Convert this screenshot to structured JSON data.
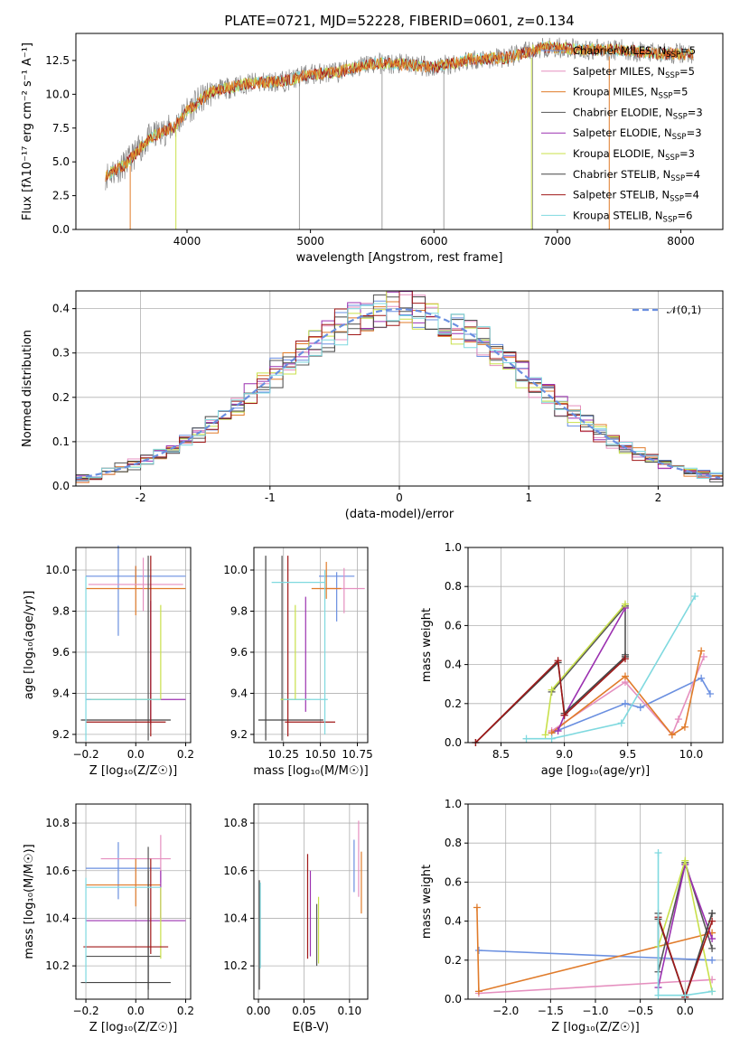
{
  "colors": {
    "chabrier_miles": "#6a8fe0",
    "salpeter_miles": "#e58fbf",
    "kroupa_miles": "#e07b2a",
    "chabrier_elodie": "#555555",
    "salpeter_elodie": "#9b30b0",
    "kroupa_elodie": "#c8e04a",
    "chabrier_stelib": "#444444",
    "salpeter_stelib": "#a01818",
    "kroupa_stelib": "#7fd9df"
  },
  "series_labels": [
    "Chabrier MILES, N_SSP=5",
    "Salpeter MILES, N_SSP=5",
    "Kroupa MILES, N_SSP=5",
    "Chabrier ELODIE, N_SSP=3",
    "Salpeter ELODIE, N_SSP=3",
    "Kroupa ELODIE, N_SSP=3",
    "Chabrier STELIB, N_SSP=4",
    "Salpeter STELIB, N_SSP=4",
    "Kroupa STELIB, N_SSP=6"
  ],
  "chart_data": [
    {
      "id": "spectrum",
      "type": "line",
      "title": "PLATE=0721, MJD=52228, FIBERID=0601, z=0.134",
      "xlabel": "wavelength [Angstrom, rest frame]",
      "ylabel": "Flux [fλ10⁻¹⁷ erg cm⁻² s⁻¹ A⁻¹]",
      "xlim": [
        3100,
        8340
      ],
      "ylim": [
        0,
        14.5
      ],
      "xticks": [
        4000,
        5000,
        6000,
        7000,
        8000
      ],
      "yticks": [
        0,
        2.5,
        5,
        7.5,
        10,
        12.5
      ],
      "ytick_labels": [
        "0.0",
        "2.5",
        "5.0",
        "7.5",
        "10.0",
        "12.5"
      ],
      "legend": "upper-right",
      "continuum": {
        "x": [
          3340,
          3500,
          3700,
          3900,
          4000,
          4200,
          4500,
          4800,
          5000,
          5200,
          5500,
          5800,
          6000,
          6300,
          6600,
          6900,
          7200,
          7500,
          7800,
          8100
        ],
        "y": [
          4.0,
          4.8,
          6.8,
          7.6,
          8.8,
          10.2,
          10.8,
          11.0,
          11.5,
          11.6,
          12.3,
          12.2,
          12.0,
          12.6,
          12.7,
          13.5,
          13.3,
          13.3,
          13.0,
          13.0
        ]
      }
    },
    {
      "id": "residuals",
      "type": "histogram",
      "xlabel": "(data-model)/error",
      "ylabel": "Normed distribution",
      "xlim": [
        -2.5,
        2.5
      ],
      "ylim": [
        0,
        0.44
      ],
      "xticks": [
        -2,
        -1,
        0,
        1,
        2
      ],
      "yticks": [
        0,
        0.1,
        0.2,
        0.3,
        0.4
      ],
      "ytick_labels": [
        "0.0",
        "0.1",
        "0.2",
        "0.3",
        "0.4"
      ],
      "legend_label": "𝒩(0,1)",
      "legend": "upper-right",
      "bin_width": 0.1
    },
    {
      "id": "age_vs_Z",
      "type": "errorbar",
      "xlabel": "Z [log₁₀(Z/Z☉)]",
      "ylabel": "age  [log₁₀(age/yr)]",
      "xlim": [
        -0.24,
        0.22
      ],
      "ylim": [
        9.16,
        10.11
      ],
      "xticks": [
        -0.2,
        0.0,
        0.2
      ],
      "xtick_labels": [
        "−0.2",
        "0.0",
        "0.2"
      ],
      "yticks": [
        9.2,
        9.4,
        9.6,
        9.8,
        10.0
      ],
      "ytick_labels": [
        "9.2",
        "9.4",
        "9.6",
        "9.8",
        "10.0"
      ],
      "points": [
        {
          "s": "chabrier_miles",
          "x": 0.0,
          "xerr": 0.2,
          "y": 9.97,
          "yerr": 0.05
        },
        {
          "s": "chabrier_miles",
          "x": -0.07,
          "xerr": 0.0,
          "y": 9.9,
          "yerr": 0.22
        },
        {
          "s": "kroupa_miles",
          "x": 0.0,
          "xerr": 0.2,
          "y": 9.91,
          "yerr": 0.0
        },
        {
          "s": "kroupa_miles",
          "x": 0.0,
          "xerr": 0.0,
          "y": 9.9,
          "yerr": 0.12
        },
        {
          "s": "salpeter_miles",
          "x": 0.03,
          "xerr": 0.0,
          "y": 9.93,
          "yerr": 0.13
        },
        {
          "s": "salpeter_miles",
          "x": 0.0,
          "xerr": 0.19,
          "y": 9.93,
          "yerr": 0.0
        },
        {
          "s": "chabrier_elodie",
          "x": 0.05,
          "xerr": 0.0,
          "y": 9.62,
          "yerr": 0.45
        },
        {
          "s": "salpeter_elodie",
          "x": 0.0,
          "xerr": 0.2,
          "y": 9.37,
          "yerr": 0.0
        },
        {
          "s": "salpeter_elodie",
          "x": 0.06,
          "xerr": 0.0,
          "y": 9.55,
          "yerr": 0.3
        },
        {
          "s": "kroupa_elodie",
          "x": 0.1,
          "xerr": 0.0,
          "y": 9.6,
          "yerr": 0.23
        },
        {
          "s": "kroupa_elodie",
          "x": -0.04,
          "xerr": 0.14,
          "y": 9.37,
          "yerr": 0.0
        },
        {
          "s": "chabrier_stelib",
          "x": -0.04,
          "xerr": 0.18,
          "y": 9.27,
          "yerr": 0.0
        },
        {
          "s": "salpeter_stelib",
          "x": -0.04,
          "xerr": 0.16,
          "y": 9.26,
          "yerr": 0.0
        },
        {
          "s": "salpeter_stelib",
          "x": 0.06,
          "xerr": 0.0,
          "y": 9.63,
          "yerr": 0.44
        },
        {
          "s": "kroupa_stelib",
          "x": -0.2,
          "xerr": 0.0,
          "y": 9.57,
          "yerr": 0.4
        },
        {
          "s": "kroupa_stelib",
          "x": -0.05,
          "xerr": 0.15,
          "y": 9.37,
          "yerr": 0.0
        }
      ]
    },
    {
      "id": "age_vs_mass",
      "type": "errorbar",
      "xlabel": "mass [log₁₀(M/M☉)]",
      "xlim": [
        10.05,
        10.82
      ],
      "ylim": [
        9.16,
        10.11
      ],
      "xticks": [
        10.25,
        10.5,
        10.75
      ],
      "xtick_labels": [
        "10.25",
        "10.50",
        "10.75"
      ],
      "yticks": [
        9.2,
        9.4,
        9.6,
        9.8,
        10.0
      ],
      "ytick_labels": [
        "9.2",
        "9.4",
        "9.6",
        "9.8",
        "10.0"
      ],
      "points": [
        {
          "s": "chabrier_miles",
          "x": 10.61,
          "xerr": 0.12,
          "y": 9.97,
          "yerr": 0.0
        },
        {
          "s": "chabrier_miles",
          "x": 10.61,
          "xerr": 0.0,
          "y": 9.87,
          "yerr": 0.12
        },
        {
          "s": "salpeter_miles",
          "x": 10.65,
          "xerr": 0.15,
          "y": 9.91,
          "yerr": 0.0
        },
        {
          "s": "salpeter_miles",
          "x": 10.66,
          "xerr": 0.0,
          "y": 9.9,
          "yerr": 0.11
        },
        {
          "s": "kroupa_miles",
          "x": 10.54,
          "xerr": 0.1,
          "y": 9.91,
          "yerr": 0.0
        },
        {
          "s": "kroupa_miles",
          "x": 10.54,
          "xerr": 0.0,
          "y": 9.95,
          "yerr": 0.09
        },
        {
          "s": "chabrier_elodie",
          "x": 10.24,
          "xerr": 0.0,
          "y": 9.62,
          "yerr": 0.45
        },
        {
          "s": "salpeter_elodie",
          "x": 10.4,
          "xerr": 0.0,
          "y": 9.59,
          "yerr": 0.28
        },
        {
          "s": "kroupa_elodie",
          "x": 10.33,
          "xerr": 0.0,
          "y": 9.6,
          "yerr": 0.23
        },
        {
          "s": "kroupa_elodie",
          "x": 10.33,
          "xerr": 0.1,
          "y": 9.37,
          "yerr": 0.0
        },
        {
          "s": "chabrier_stelib",
          "x": 10.13,
          "xerr": 0.0,
          "y": 9.62,
          "yerr": 0.45
        },
        {
          "s": "chabrier_stelib",
          "x": 10.3,
          "xerr": 0.22,
          "y": 9.27,
          "yerr": 0.0
        },
        {
          "s": "salpeter_stelib",
          "x": 10.28,
          "xerr": 0.0,
          "y": 9.63,
          "yerr": 0.44
        },
        {
          "s": "salpeter_stelib",
          "x": 10.43,
          "xerr": 0.17,
          "y": 9.26,
          "yerr": 0.0
        },
        {
          "s": "kroupa_stelib",
          "x": 10.53,
          "xerr": 0.0,
          "y": 9.6,
          "yerr": 0.4
        },
        {
          "s": "kroupa_stelib",
          "x": 10.35,
          "xerr": 0.18,
          "y": 9.94,
          "yerr": 0.0
        },
        {
          "s": "kroupa_stelib",
          "x": 10.4,
          "xerr": 0.15,
          "y": 9.37,
          "yerr": 0.0
        }
      ]
    },
    {
      "id": "weight_vs_age",
      "type": "line",
      "xlabel": "age  [log₁₀(age/yr)]",
      "ylabel": "mass weight",
      "xlim": [
        8.24,
        10.25
      ],
      "ylim": [
        0,
        1.0
      ],
      "xticks": [
        8.5,
        9.0,
        9.5,
        10.0
      ],
      "xtick_labels": [
        "8.5",
        "9.0",
        "9.5",
        "10.0"
      ],
      "yticks": [
        0,
        0.2,
        0.4,
        0.6,
        0.8,
        1.0
      ],
      "ytick_labels": [
        "0.0",
        "0.2",
        "0.4",
        "0.6",
        "0.8",
        "1.0"
      ],
      "series": [
        {
          "s": "chabrier_miles",
          "x": [
            8.9,
            9.48,
            9.6,
            10.08,
            10.15
          ],
          "y": [
            0.05,
            0.2,
            0.18,
            0.33,
            0.25
          ]
        },
        {
          "s": "salpeter_miles",
          "x": [
            8.9,
            9.48,
            9.85,
            9.9,
            10.1
          ],
          "y": [
            0.06,
            0.31,
            0.04,
            0.12,
            0.44
          ]
        },
        {
          "s": "kroupa_miles",
          "x": [
            8.9,
            9.48,
            9.85,
            9.95,
            10.08
          ],
          "y": [
            0.05,
            0.34,
            0.04,
            0.08,
            0.47
          ]
        },
        {
          "s": "chabrier_elodie",
          "x": [
            8.9,
            9.48,
            9.48
          ],
          "y": [
            0.26,
            0.7,
            0.45
          ]
        },
        {
          "s": "salpeter_elodie",
          "x": [
            8.95,
            9.0,
            9.48
          ],
          "y": [
            0.06,
            0.14,
            0.69
          ]
        },
        {
          "s": "kroupa_elodie",
          "x": [
            8.85,
            8.9,
            9.48
          ],
          "y": [
            0.04,
            0.27,
            0.71
          ]
        },
        {
          "s": "chabrier_stelib",
          "x": [
            8.3,
            8.95,
            9.0,
            9.48
          ],
          "y": [
            0.0,
            0.41,
            0.15,
            0.44
          ]
        },
        {
          "s": "salpeter_stelib",
          "x": [
            8.3,
            8.95,
            9.0,
            9.48
          ],
          "y": [
            0.0,
            0.42,
            0.14,
            0.43
          ]
        },
        {
          "s": "kroupa_stelib",
          "x": [
            8.7,
            8.9,
            9.45,
            10.03
          ],
          "y": [
            0.02,
            0.02,
            0.1,
            0.75
          ]
        }
      ]
    },
    {
      "id": "mass_vs_Z",
      "type": "errorbar",
      "xlabel": "Z [log₁₀(Z/Z☉)]",
      "ylabel": "mass [log₁₀(M/M☉)]",
      "xlim": [
        -0.24,
        0.22
      ],
      "ylim": [
        10.06,
        10.88
      ],
      "xticks": [
        -0.2,
        0.0,
        0.2
      ],
      "xtick_labels": [
        "−0.2",
        "0.0",
        "0.2"
      ],
      "yticks": [
        10.2,
        10.4,
        10.6,
        10.8
      ],
      "ytick_labels": [
        "10.2",
        "10.4",
        "10.6",
        "10.8"
      ],
      "points": [
        {
          "s": "chabrier_miles",
          "x": -0.05,
          "xerr": 0.15,
          "y": 10.61,
          "yerr": 0.0
        },
        {
          "s": "chabrier_miles",
          "x": -0.07,
          "xerr": 0.0,
          "y": 10.6,
          "yerr": 0.12
        },
        {
          "s": "salpeter_miles",
          "x": 0.0,
          "xerr": 0.14,
          "y": 10.65,
          "yerr": 0.0
        },
        {
          "s": "salpeter_miles",
          "x": 0.1,
          "xerr": 0.0,
          "y": 10.65,
          "yerr": 0.1
        },
        {
          "s": "kroupa_miles",
          "x": -0.05,
          "xerr": 0.15,
          "y": 10.54,
          "yerr": 0.0
        },
        {
          "s": "kroupa_miles",
          "x": 0.0,
          "xerr": 0.0,
          "y": 10.55,
          "yerr": 0.1
        },
        {
          "s": "chabrier_elodie",
          "x": 0.05,
          "xerr": 0.0,
          "y": 10.38,
          "yerr": 0.32
        },
        {
          "s": "chabrier_elodie",
          "x": -0.05,
          "xerr": 0.15,
          "y": 10.24,
          "yerr": 0.0
        },
        {
          "s": "salpeter_elodie",
          "x": 0.0,
          "xerr": 0.2,
          "y": 10.39,
          "yerr": 0.0
        },
        {
          "s": "salpeter_elodie",
          "x": 0.1,
          "xerr": 0.0,
          "y": 10.5,
          "yerr": 0.1
        },
        {
          "s": "kroupa_elodie",
          "x": 0.1,
          "xerr": 0.0,
          "y": 10.38,
          "yerr": 0.15
        },
        {
          "s": "chabrier_stelib",
          "x": -0.04,
          "xerr": 0.18,
          "y": 10.13,
          "yerr": 0.0
        },
        {
          "s": "chabrier_stelib",
          "x": 0.05,
          "xerr": 0.0,
          "y": 10.35,
          "yerr": 0.25
        },
        {
          "s": "salpeter_stelib",
          "x": -0.04,
          "xerr": 0.17,
          "y": 10.28,
          "yerr": 0.0
        },
        {
          "s": "salpeter_stelib",
          "x": 0.06,
          "xerr": 0.0,
          "y": 10.45,
          "yerr": 0.2
        },
        {
          "s": "kroupa_stelib",
          "x": -0.2,
          "xerr": 0.0,
          "y": 10.35,
          "yerr": 0.22
        },
        {
          "s": "kroupa_stelib",
          "x": -0.05,
          "xerr": 0.15,
          "y": 10.53,
          "yerr": 0.0
        }
      ]
    },
    {
      "id": "mass_vs_ebv",
      "type": "errorbar",
      "xlabel": "E(B-V)",
      "xlim": [
        -0.005,
        0.12
      ],
      "ylim": [
        10.06,
        10.88
      ],
      "xticks": [
        0.0,
        0.05,
        0.1
      ],
      "xtick_labels": [
        "0.00",
        "0.05",
        "0.10"
      ],
      "yticks": [
        10.2,
        10.4,
        10.6,
        10.8
      ],
      "ytick_labels": [
        "10.2",
        "10.4",
        "10.6",
        "10.8"
      ],
      "points": [
        {
          "s": "chabrier_stelib",
          "x": 0.001,
          "xerr": 0.0,
          "y": 10.33,
          "yerr": 0.23
        },
        {
          "s": "kroupa_stelib",
          "x": 0.002,
          "xerr": 0.0,
          "y": 10.37,
          "yerr": 0.18
        },
        {
          "s": "salpeter_stelib",
          "x": 0.054,
          "xerr": 0.0,
          "y": 10.45,
          "yerr": 0.22
        },
        {
          "s": "salpeter_elodie",
          "x": 0.057,
          "xerr": 0.0,
          "y": 10.42,
          "yerr": 0.18
        },
        {
          "s": "kroupa_elodie",
          "x": 0.066,
          "xerr": 0.0,
          "y": 10.35,
          "yerr": 0.14
        },
        {
          "s": "chabrier_elodie",
          "x": 0.064,
          "xerr": 0.0,
          "y": 10.33,
          "yerr": 0.13
        },
        {
          "s": "chabrier_miles",
          "x": 0.105,
          "xerr": 0.0,
          "y": 10.62,
          "yerr": 0.11
        },
        {
          "s": "salpeter_miles",
          "x": 0.11,
          "xerr": 0.0,
          "y": 10.65,
          "yerr": 0.16
        },
        {
          "s": "kroupa_miles",
          "x": 0.113,
          "xerr": 0.0,
          "y": 10.55,
          "yerr": 0.13
        }
      ]
    },
    {
      "id": "weight_vs_Z",
      "type": "line",
      "xlabel": "Z [log₁₀(Z/Z☉)]",
      "ylabel": "mass weight",
      "xlim": [
        -2.42,
        0.42
      ],
      "ylim": [
        0,
        1.0
      ],
      "xticks": [
        -2.0,
        -1.5,
        -1.0,
        -0.5,
        0.0
      ],
      "xtick_labels": [
        "−2.0",
        "−1.5",
        "−1.0",
        "−0.5",
        "0.0"
      ],
      "yticks": [
        0,
        0.2,
        0.4,
        0.6,
        0.8,
        1.0
      ],
      "ytick_labels": [
        "0.0",
        "0.2",
        "0.4",
        "0.6",
        "0.8",
        "1.0"
      ],
      "series": [
        {
          "s": "chabrier_miles",
          "x": [
            -2.3,
            0.3
          ],
          "y": [
            0.25,
            0.2
          ]
        },
        {
          "s": "salpeter_miles",
          "x": [
            -2.3,
            0.3
          ],
          "y": [
            0.03,
            0.1
          ]
        },
        {
          "s": "kroupa_miles",
          "x": [
            -2.32,
            -2.3,
            0.3
          ],
          "y": [
            0.47,
            0.04,
            0.34
          ]
        },
        {
          "s": "chabrier_elodie",
          "x": [
            -0.3,
            -0.3,
            0.0,
            0.3
          ],
          "y": [
            0.44,
            0.14,
            0.7,
            0.26
          ]
        },
        {
          "s": "salpeter_elodie",
          "x": [
            -0.3,
            0.0,
            0.3
          ],
          "y": [
            0.06,
            0.69,
            0.31
          ]
        },
        {
          "s": "kroupa_elodie",
          "x": [
            -0.3,
            0.0,
            0.3
          ],
          "y": [
            0.27,
            0.71,
            0.04
          ]
        },
        {
          "s": "chabrier_stelib",
          "x": [
            -0.3,
            0.0,
            0.3
          ],
          "y": [
            0.41,
            0.01,
            0.44
          ]
        },
        {
          "s": "salpeter_stelib",
          "x": [
            -0.3,
            0.0,
            0.3
          ],
          "y": [
            0.42,
            0.01,
            0.4
          ]
        },
        {
          "s": "kroupa_stelib",
          "x": [
            -0.3,
            -0.3,
            0.0,
            0.3
          ],
          "y": [
            0.75,
            0.02,
            0.02,
            0.04
          ]
        }
      ]
    }
  ]
}
